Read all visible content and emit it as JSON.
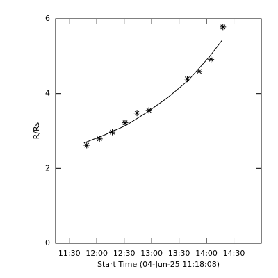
{
  "chart_data": {
    "type": "scatter",
    "x_label": "Start Time (04-Jun-25 11:18:08)",
    "y_label": "R/Rs",
    "xlim": [
      675,
      900
    ],
    "xticks": [
      {
        "value": 690,
        "label": "11:30"
      },
      {
        "value": 720,
        "label": "12:00"
      },
      {
        "value": 750,
        "label": "12:30"
      },
      {
        "value": 780,
        "label": "13:00"
      },
      {
        "value": 810,
        "label": "13:30"
      },
      {
        "value": 840,
        "label": "14:00"
      },
      {
        "value": 870,
        "label": "14:30"
      }
    ],
    "ylim": [
      0,
      6
    ],
    "yticks": [
      0,
      2,
      4,
      6
    ],
    "color": "#000000",
    "series": [
      {
        "x": [
          709,
          723,
          737,
          751,
          764,
          777,
          819,
          832,
          845,
          858
        ],
        "values": [
          2.62,
          2.79,
          2.97,
          3.22,
          3.48,
          3.55,
          4.39,
          4.59,
          4.91,
          5.78
        ]
      },
      {
        "x": [
          706,
          729,
          752,
          775,
          798,
          820,
          843,
          857
        ],
        "values": [
          2.68,
          2.9,
          3.15,
          3.5,
          3.9,
          4.35,
          4.98,
          5.42
        ],
        "line": true
      }
    ]
  }
}
